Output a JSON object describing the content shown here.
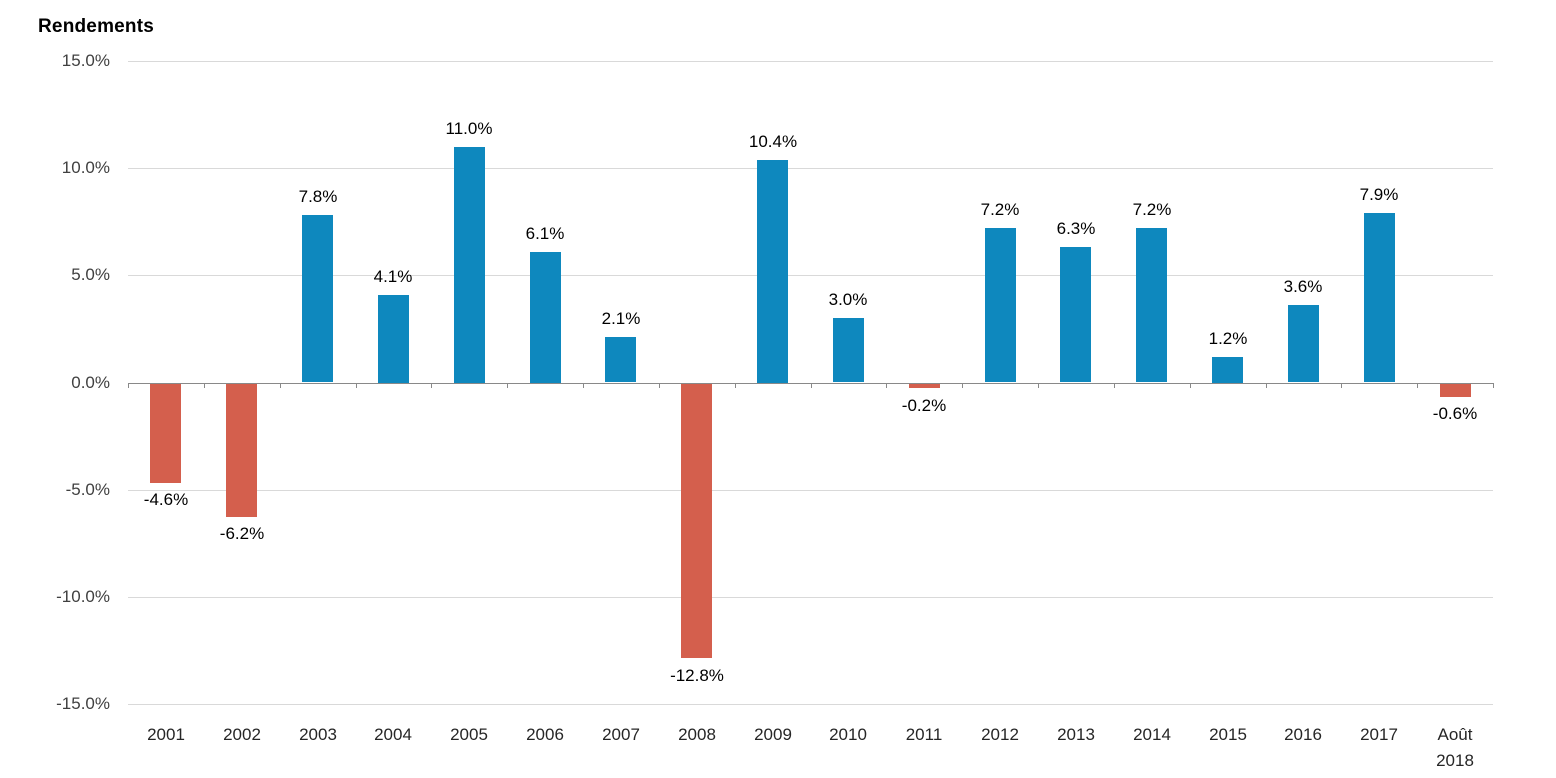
{
  "chart_data": {
    "type": "bar",
    "title": "Rendements",
    "categories": [
      "2001",
      "2002",
      "2003",
      "2004",
      "2005",
      "2006",
      "2007",
      "2008",
      "2009",
      "2010",
      "2011",
      "2012",
      "2013",
      "2014",
      "2015",
      "2016",
      "2017",
      "Août 2018"
    ],
    "values": [
      -4.6,
      -6.2,
      7.8,
      4.1,
      11.0,
      6.1,
      2.1,
      -12.8,
      10.4,
      3.0,
      -0.2,
      7.2,
      6.3,
      7.2,
      1.2,
      3.6,
      7.9,
      -0.6
    ],
    "data_labels": [
      "-4.6%",
      "-6.2%",
      "7.8%",
      "4.1%",
      "11.0%",
      "6.1%",
      "2.1%",
      "-12.8%",
      "10.4%",
      "3.0%",
      "-0.2%",
      "7.2%",
      "6.3%",
      "7.2%",
      "1.2%",
      "3.6%",
      "7.9%",
      "-0.6%"
    ],
    "ylim": [
      -15,
      15
    ],
    "ytick_step": 5,
    "yticks": [
      {
        "value": 15,
        "label": "15.0%"
      },
      {
        "value": 10,
        "label": "10.0%"
      },
      {
        "value": 5,
        "label": "5.0%"
      },
      {
        "value": 0,
        "label": "0.0%"
      },
      {
        "value": -5,
        "label": "-5.0%"
      },
      {
        "value": -10,
        "label": "-10.0%"
      },
      {
        "value": -15,
        "label": "-15.0%"
      }
    ],
    "grid": true,
    "legend": "none",
    "colors": {
      "positive_bar": "#0E88BE",
      "negative_bar": "#D45F4D",
      "gridline": "#D9D9D9",
      "axis_line": "#898989",
      "axis_label_text": "#404040",
      "category_label_text": "#262626",
      "data_label_text": "#000000",
      "title_text": "#000000"
    }
  }
}
